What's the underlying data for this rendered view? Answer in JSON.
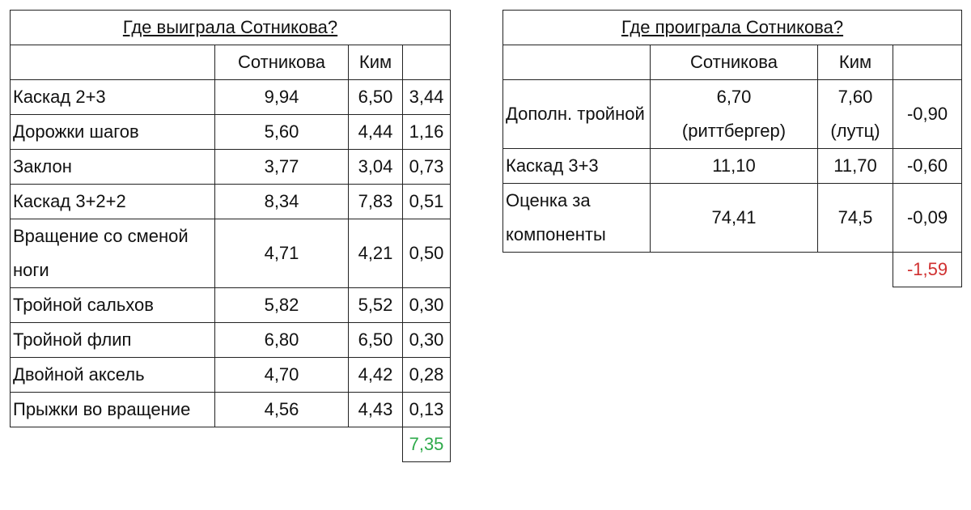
{
  "left": {
    "title": "Где выиграла Сотникова?",
    "header": [
      "Сотникова",
      "Ким"
    ],
    "rows": [
      [
        "Каскад 2+3",
        "9,94",
        "6,50",
        "3,44"
      ],
      [
        "Дорожки шагов",
        "5,60",
        "4,44",
        "1,16"
      ],
      [
        "Заклон",
        "3,77",
        "3,04",
        "0,73"
      ],
      [
        "Каскад 3+2+2",
        "8,34",
        "7,83",
        "0,51"
      ],
      [
        "Вращение со сменой ноги",
        "4,71",
        "4,21",
        "0,50"
      ],
      [
        "Тройной сальхов",
        "5,82",
        "5,52",
        "0,30"
      ],
      [
        "Тройной флип",
        "6,80",
        "6,50",
        "0,30"
      ],
      [
        "Двойной аксель",
        "4,70",
        "4,42",
        "0,28"
      ],
      [
        "Прыжки во вращение",
        "4,56",
        "4,43",
        "0,13"
      ]
    ],
    "total": "7,35"
  },
  "right": {
    "title": "Где проиграла Сотникова?",
    "header": [
      "Сотникова",
      "Ким"
    ],
    "rows": [
      [
        "Дополн. тройной",
        "6,70\n(риттбергер)",
        "7,60\n(лутц)",
        "-0,90"
      ],
      [
        "Каскад 3+3",
        "11,10",
        "11,70",
        "-0,60"
      ],
      [
        "Оценка за компоненты",
        "74,41",
        "74,5",
        "-0,09"
      ]
    ],
    "total": "-1,59"
  }
}
